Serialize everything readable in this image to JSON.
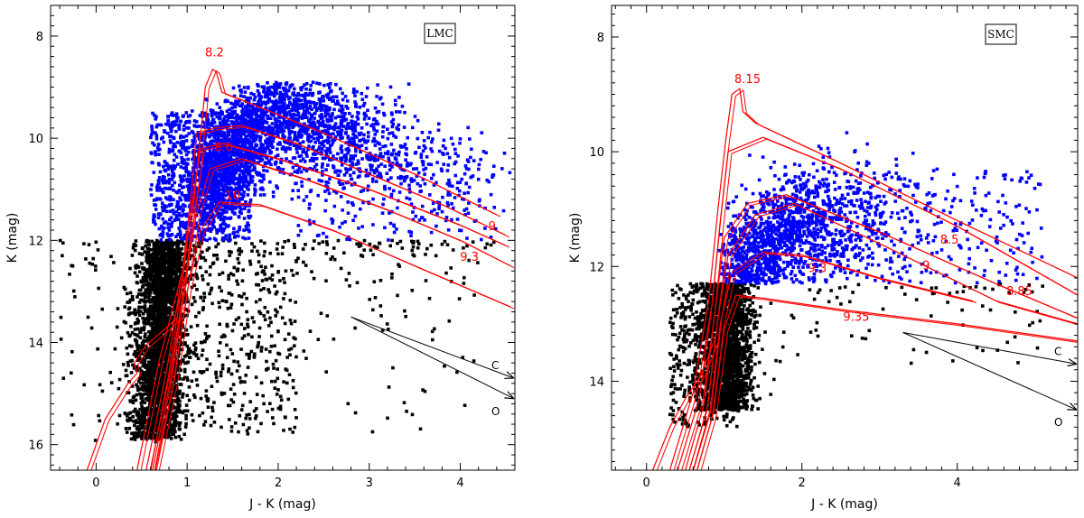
{
  "colors": {
    "bright": "#0000ff",
    "faint": "#000000",
    "isochrone": "#ff0000",
    "vector": "#000000"
  },
  "chart_data": [
    {
      "type": "scatter",
      "title": "",
      "panel_label": "LMC",
      "xlabel": "J - K (mag)",
      "ylabel": "K (mag)",
      "xlim": [
        -0.5,
        4.6
      ],
      "ylim": [
        16.5,
        7.4
      ],
      "y_inverted": true,
      "xticks": [
        "0",
        "1",
        "2",
        "3",
        "4"
      ],
      "yticks": [
        "8",
        "10",
        "12",
        "14",
        "16"
      ],
      "x_tick_values": [
        0,
        1,
        2,
        3,
        4
      ],
      "y_tick_values": [
        8,
        10,
        12,
        14,
        16
      ],
      "magnitude_split": 12.0,
      "isochrone_labels": [
        {
          "text": "8.2",
          "x": 1.3,
          "y": 8.4
        },
        {
          "text": "8.6",
          "x": 1.4,
          "y": 10.25
        },
        {
          "text": "10",
          "x": 1.5,
          "y": 11.2
        },
        {
          "text": "9",
          "x": 4.35,
          "y": 11.8
        },
        {
          "text": "9.3",
          "x": 4.1,
          "y": 12.4
        }
      ],
      "isochrones": [
        {
          "label": "8.2",
          "points": [
            [
              0.45,
              16.5
            ],
            [
              0.7,
              14.3
            ],
            [
              0.95,
              12.6
            ],
            [
              1.1,
              10.8
            ],
            [
              1.2,
              9.0
            ],
            [
              1.28,
              8.65
            ],
            [
              1.32,
              8.7
            ],
            [
              1.38,
              9.1
            ],
            [
              1.6,
              9.25
            ],
            [
              2.5,
              9.9
            ],
            [
              3.5,
              10.7
            ],
            [
              4.4,
              11.5
            ]
          ]
        },
        {
          "label": "8.6",
          "points": [
            [
              0.55,
              16.5
            ],
            [
              0.78,
              14.5
            ],
            [
              0.95,
              12.6
            ],
            [
              1.05,
              11.0
            ],
            [
              1.1,
              9.9
            ],
            [
              1.3,
              9.8
            ],
            [
              1.6,
              9.75
            ],
            [
              2.2,
              10.1
            ],
            [
              3.0,
              10.7
            ],
            [
              3.8,
              11.3
            ],
            [
              4.5,
              11.9
            ]
          ]
        },
        {
          "label": "9",
          "points": [
            [
              0.6,
              16.5
            ],
            [
              0.8,
              14.6
            ],
            [
              0.95,
              12.8
            ],
            [
              1.05,
              11.3
            ],
            [
              1.15,
              10.2
            ],
            [
              1.4,
              10.1
            ],
            [
              2.0,
              10.4
            ],
            [
              3.0,
              11.0
            ],
            [
              4.0,
              11.7
            ],
            [
              4.5,
              12.1
            ]
          ]
        },
        {
          "label": "9.3",
          "points": [
            [
              0.62,
              16.5
            ],
            [
              0.82,
              14.7
            ],
            [
              0.97,
              12.9
            ],
            [
              1.1,
              11.5
            ],
            [
              1.25,
              10.6
            ],
            [
              1.6,
              10.4
            ],
            [
              2.3,
              10.8
            ],
            [
              3.2,
              11.4
            ],
            [
              4.0,
              12.0
            ],
            [
              4.55,
              12.5
            ]
          ]
        },
        {
          "label": "10",
          "points": [
            [
              0.65,
              16.5
            ],
            [
              0.85,
              14.8
            ],
            [
              1.0,
              13.0
            ],
            [
              1.15,
              11.8
            ],
            [
              1.35,
              11.25
            ],
            [
              1.8,
              11.3
            ],
            [
              2.6,
              11.8
            ],
            [
              3.5,
              12.5
            ],
            [
              4.55,
              13.3
            ]
          ]
        },
        {
          "label": "hook",
          "points": [
            [
              -0.1,
              16.5
            ],
            [
              0.1,
              15.5
            ],
            [
              0.35,
              14.8
            ],
            [
              0.45,
              14.6
            ],
            [
              0.42,
              14.4
            ],
            [
              0.55,
              14.05
            ],
            [
              0.65,
              13.9
            ],
            [
              0.9,
              13.5
            ]
          ]
        }
      ],
      "reddening_vectors": [
        {
          "label": "C",
          "x0": 2.8,
          "y0": 13.5,
          "x1": 4.6,
          "y1": 14.7
        },
        {
          "label": "O",
          "x0": 2.8,
          "y0": 13.5,
          "x1": 4.6,
          "y1": 15.1
        }
      ]
    },
    {
      "type": "scatter",
      "title": "",
      "panel_label": "SMC",
      "xlabel": "J - K (mag)",
      "ylabel": "K (mag)",
      "xlim": [
        -0.45,
        5.55
      ],
      "ylim": [
        15.55,
        7.45
      ],
      "y_inverted": true,
      "xticks": [
        "0",
        "2",
        "4"
      ],
      "yticks": [
        "8",
        "10",
        "12",
        "14"
      ],
      "x_tick_values": [
        0,
        2,
        4
      ],
      "y_tick_values": [
        8,
        10,
        12,
        14
      ],
      "magnitude_split": 12.3,
      "isochrone_labels": [
        {
          "text": "8.15",
          "x": 1.3,
          "y": 8.8
        },
        {
          "text": "8.5",
          "x": 3.9,
          "y": 11.6
        },
        {
          "text": "9.3",
          "x": 2.2,
          "y": 12.1
        },
        {
          "text": "9",
          "x": 3.6,
          "y": 12.05
        },
        {
          "text": "8.85",
          "x": 4.8,
          "y": 12.5
        },
        {
          "text": "9.35",
          "x": 2.7,
          "y": 12.95
        }
      ],
      "isochrones": [
        {
          "label": "8.15",
          "points": [
            [
              0.3,
              15.55
            ],
            [
              0.6,
              14.2
            ],
            [
              0.8,
              12.6
            ],
            [
              0.92,
              11.0
            ],
            [
              1.02,
              9.8
            ],
            [
              1.1,
              9.0
            ],
            [
              1.2,
              8.9
            ],
            [
              1.24,
              9.3
            ],
            [
              1.4,
              9.5
            ],
            [
              2.5,
              10.2
            ],
            [
              4.0,
              11.2
            ],
            [
              5.55,
              12.2
            ]
          ]
        },
        {
          "label": "8.5",
          "points": [
            [
              0.4,
              15.55
            ],
            [
              0.68,
              14.3
            ],
            [
              0.84,
              12.7
            ],
            [
              0.95,
              11.2
            ],
            [
              1.05,
              10.0
            ],
            [
              1.5,
              9.75
            ],
            [
              2.5,
              10.3
            ],
            [
              4.0,
              11.3
            ],
            [
              5.55,
              12.5
            ]
          ]
        },
        {
          "label": "8.85",
          "points": [
            [
              0.5,
              15.55
            ],
            [
              0.74,
              14.4
            ],
            [
              0.88,
              12.8
            ],
            [
              1.0,
              11.5
            ],
            [
              1.3,
              10.9
            ],
            [
              1.8,
              10.75
            ],
            [
              3.0,
              11.4
            ],
            [
              4.5,
              12.3
            ],
            [
              5.55,
              12.9
            ]
          ]
        },
        {
          "label": "9",
          "points": [
            [
              0.55,
              15.55
            ],
            [
              0.78,
              14.5
            ],
            [
              0.92,
              12.9
            ],
            [
              1.05,
              11.8
            ],
            [
              1.4,
              11.1
            ],
            [
              1.9,
              10.9
            ],
            [
              3.0,
              11.6
            ],
            [
              4.5,
              12.6
            ],
            [
              5.55,
              13.0
            ]
          ]
        },
        {
          "label": "9.3",
          "points": [
            [
              0.6,
              15.55
            ],
            [
              0.82,
              14.5
            ],
            [
              0.95,
              13.0
            ],
            [
              1.1,
              12.1
            ],
            [
              1.5,
              11.75
            ],
            [
              2.0,
              11.8
            ],
            [
              3.0,
              12.2
            ],
            [
              4.2,
              12.6
            ]
          ]
        },
        {
          "label": "9.35",
          "points": [
            [
              0.65,
              15.55
            ],
            [
              0.85,
              14.6
            ],
            [
              1.0,
              13.1
            ],
            [
              1.15,
              12.5
            ],
            [
              1.5,
              12.55
            ],
            [
              2.5,
              12.75
            ],
            [
              4.0,
              13.0
            ],
            [
              5.55,
              13.3
            ]
          ]
        },
        {
          "label": "hook",
          "points": [
            [
              0.08,
              15.55
            ],
            [
              0.3,
              14.8
            ],
            [
              0.5,
              14.3
            ],
            [
              0.7,
              13.9
            ],
            [
              0.9,
              13.2
            ]
          ]
        }
      ],
      "reddening_vectors": [
        {
          "label": "C",
          "x0": 3.3,
          "y0": 13.15,
          "x1": 5.55,
          "y1": 13.7
        },
        {
          "label": "O",
          "x0": 3.3,
          "y0": 13.15,
          "x1": 5.55,
          "y1": 14.5
        }
      ]
    }
  ]
}
